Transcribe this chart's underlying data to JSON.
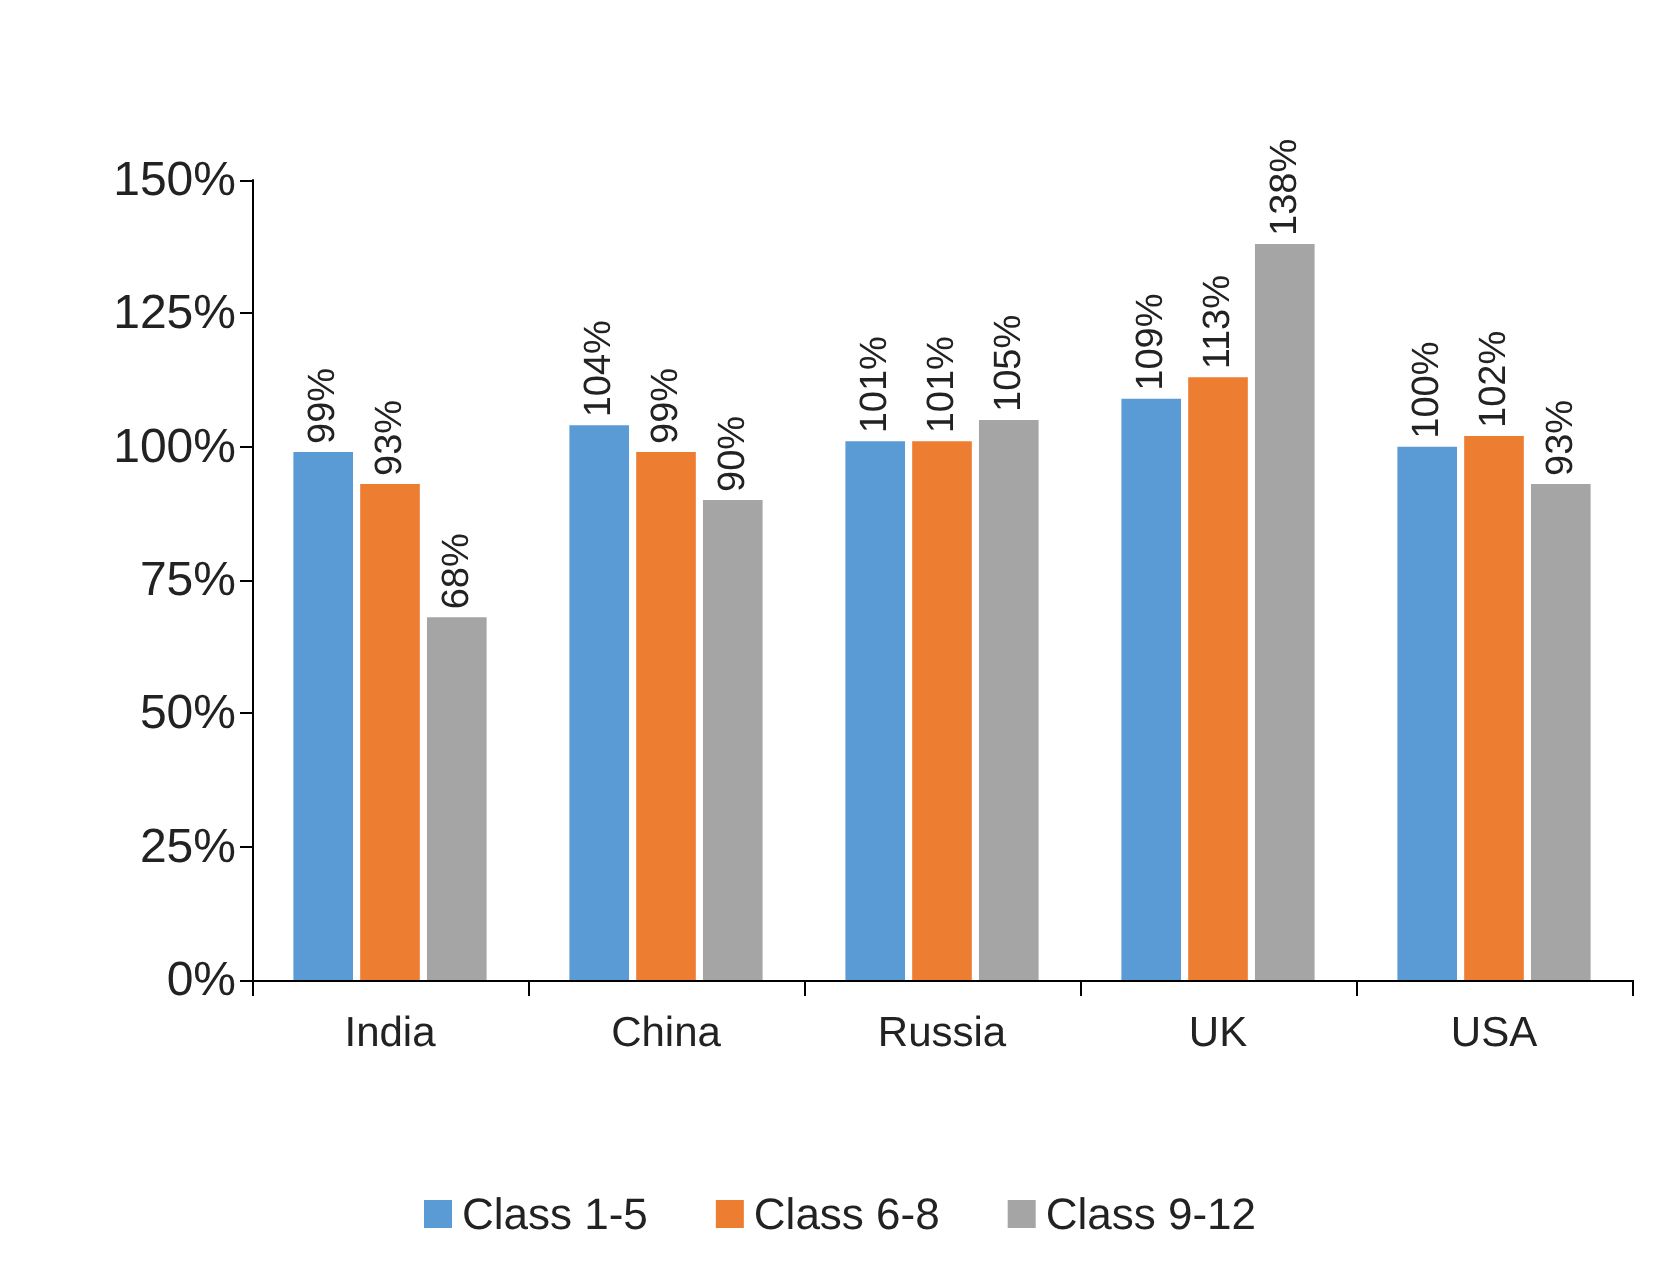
{
  "chart_data": {
    "type": "bar",
    "categories": [
      "India",
      "China",
      "Russia",
      "UK",
      "USA"
    ],
    "series": [
      {
        "name": "Class 1-5",
        "color": "#5b9bd5",
        "values": [
          99,
          104,
          101,
          109,
          100
        ],
        "value_labels": [
          "99%",
          "104%",
          "101%",
          "109%",
          "100%"
        ]
      },
      {
        "name": "Class 6-8",
        "color": "#ed7d31",
        "values": [
          93,
          99,
          101,
          113,
          102
        ],
        "value_labels": [
          "93%",
          "99%",
          "101%",
          "113%",
          "102%"
        ]
      },
      {
        "name": "Class 9-12",
        "color": "#a5a5a5",
        "values": [
          68,
          90,
          105,
          138,
          93
        ],
        "value_labels": [
          "68%",
          "90%",
          "105%",
          "138%",
          "93%"
        ]
      }
    ],
    "ylim": [
      0,
      150
    ],
    "yticks": [
      {
        "value": 0,
        "label": "0%"
      },
      {
        "value": 25,
        "label": "25%"
      },
      {
        "value": 50,
        "label": "50%"
      },
      {
        "value": 75,
        "label": "75%"
      },
      {
        "value": 100,
        "label": "100%"
      },
      {
        "value": 125,
        "label": "125%"
      },
      {
        "value": 150,
        "label": "150%"
      }
    ],
    "grid": false,
    "legend": "bottom"
  }
}
